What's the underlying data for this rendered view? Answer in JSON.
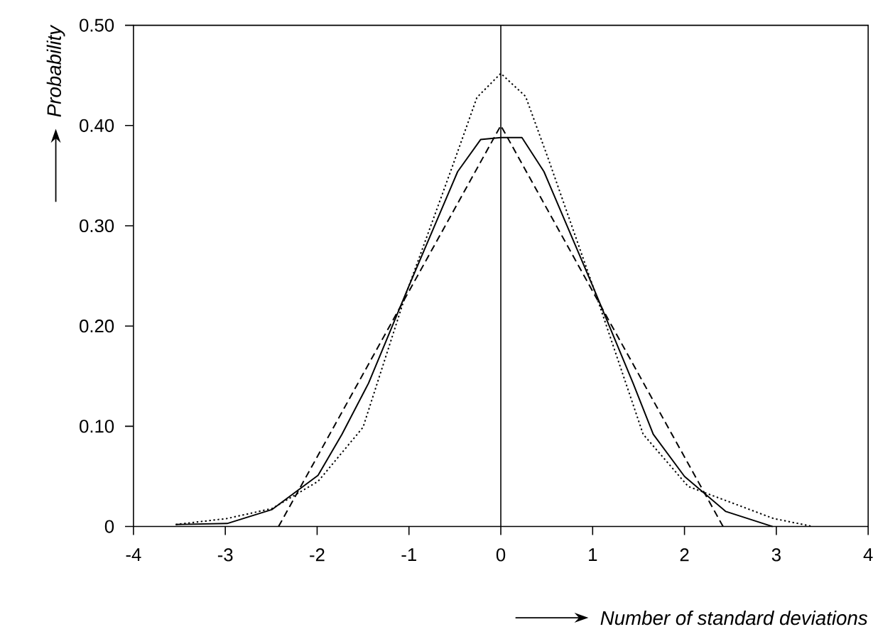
{
  "chart_data": {
    "type": "line",
    "xlabel": "Number of standard deviations",
    "ylabel": "Probability",
    "xlim": [
      -4,
      4
    ],
    "xticks": [
      -4,
      -3,
      -2,
      -1,
      0,
      1,
      2,
      3,
      4
    ],
    "ylim": [
      0,
      0.5
    ],
    "yticks": [
      0,
      {
        "value": 0.1,
        "label": "0.10"
      },
      {
        "value": 0.2,
        "label": "0.20"
      },
      {
        "value": 0.3,
        "label": "0.30"
      },
      {
        "value": 0.4,
        "label": "0.40"
      },
      {
        "value": 0.5,
        "label": "0.50"
      }
    ],
    "grid": false,
    "marker": "none",
    "ref_lines": [
      {
        "axis": "x",
        "value": 0,
        "line_style": "solid",
        "color": "#000000"
      }
    ],
    "series": [
      {
        "color": "#000000",
        "line_style": "solid",
        "x": [
          -3.54,
          -2.98,
          -2.49,
          -1.99,
          -1.73,
          -1.44,
          -1.0,
          -0.47,
          -0.22,
          0,
          0.23,
          0.47,
          1.0,
          1.44,
          1.66,
          2.0,
          2.45,
          2.96
        ],
        "values": [
          0.002,
          0.003,
          0.017,
          0.051,
          0.092,
          0.143,
          0.24,
          0.354,
          0.386,
          0.388,
          0.388,
          0.354,
          0.24,
          0.143,
          0.092,
          0.05,
          0.015,
          0
        ]
      },
      {
        "color": "#000000",
        "line_style": "dotted",
        "x": [
          -3.54,
          -2.98,
          -2.49,
          -1.99,
          -1.5,
          -1.04,
          -0.52,
          -0.26,
          0,
          0.27,
          0.52,
          1.04,
          1.55,
          2.04,
          2.97,
          3.4
        ],
        "values": [
          0.002,
          0.008,
          0.018,
          0.045,
          0.099,
          0.23,
          0.361,
          0.428,
          0.452,
          0.429,
          0.366,
          0.23,
          0.092,
          0.04,
          0.008,
          0
        ]
      },
      {
        "color": "#000000",
        "line_style": "dashed",
        "x": [
          -2.42,
          0,
          2.42
        ],
        "values": [
          0,
          0.4,
          0
        ]
      }
    ]
  }
}
